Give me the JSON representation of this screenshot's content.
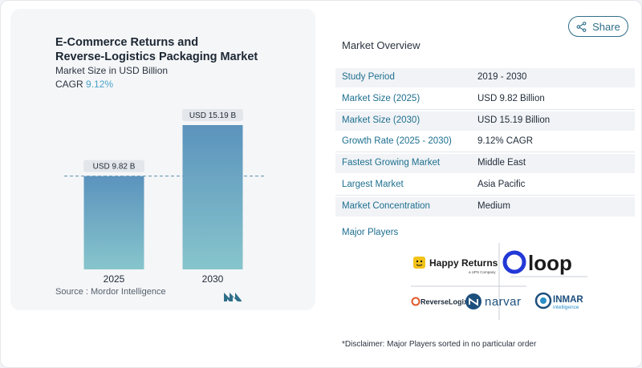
{
  "chart": {
    "title_line1": "E-Commerce Returns and",
    "title_line2": "Reverse-Logistics Packaging Market",
    "subtitle": "Market Size in USD Billion",
    "cagr_label": "CAGR",
    "cagr_value": "9.12%",
    "source": "Source :  Mordor Intelligence"
  },
  "chart_data": {
    "type": "bar",
    "categories": [
      "2025",
      "2030"
    ],
    "values": [
      9.82,
      15.19
    ],
    "data_labels": [
      "USD 9.82 B",
      "USD 15.19 B"
    ],
    "title": "E-Commerce Returns and Reverse-Logistics Packaging Market",
    "subtitle": "Market Size in USD Billion",
    "ylim": [
      0,
      15.19
    ],
    "grid": false,
    "reference_line": 9.82,
    "colors": {
      "bar_top": "#5b93bd",
      "bar_bottom": "#87c5cc",
      "label_bg": "#e3e6ea"
    }
  },
  "share": {
    "label": "Share"
  },
  "overview": {
    "title": "Market Overview",
    "rows": [
      {
        "label": "Study Period",
        "value": "2019 - 2030"
      },
      {
        "label": "Market Size (2025)",
        "value": "USD 9.82 Billion"
      },
      {
        "label": "Market Size (2030)",
        "value": "USD 15.19 Billion"
      },
      {
        "label": "Growth Rate (2025 - 2030)",
        "value": "9.12% CAGR"
      },
      {
        "label": "Fastest Growing Market",
        "value": "Middle East"
      },
      {
        "label": "Largest Market",
        "value": "Asia Pacific"
      },
      {
        "label": "Market Concentration",
        "value": "Medium"
      }
    ],
    "players_title": "Major Players"
  },
  "players": {
    "happy_returns": "Happy Returns",
    "happy_returns_tag": "a UPS Company",
    "loop": "loop",
    "reverselogix": "ReverseLogix",
    "narvar": "narvar",
    "inmar": "INMAR",
    "inmar_sub": "intelligence"
  },
  "disclaimer": "*Disclaimer: Major Players sorted in no particular order",
  "colors": {
    "accent": "#1d6f8f",
    "cagr": "#4aa3c8"
  }
}
